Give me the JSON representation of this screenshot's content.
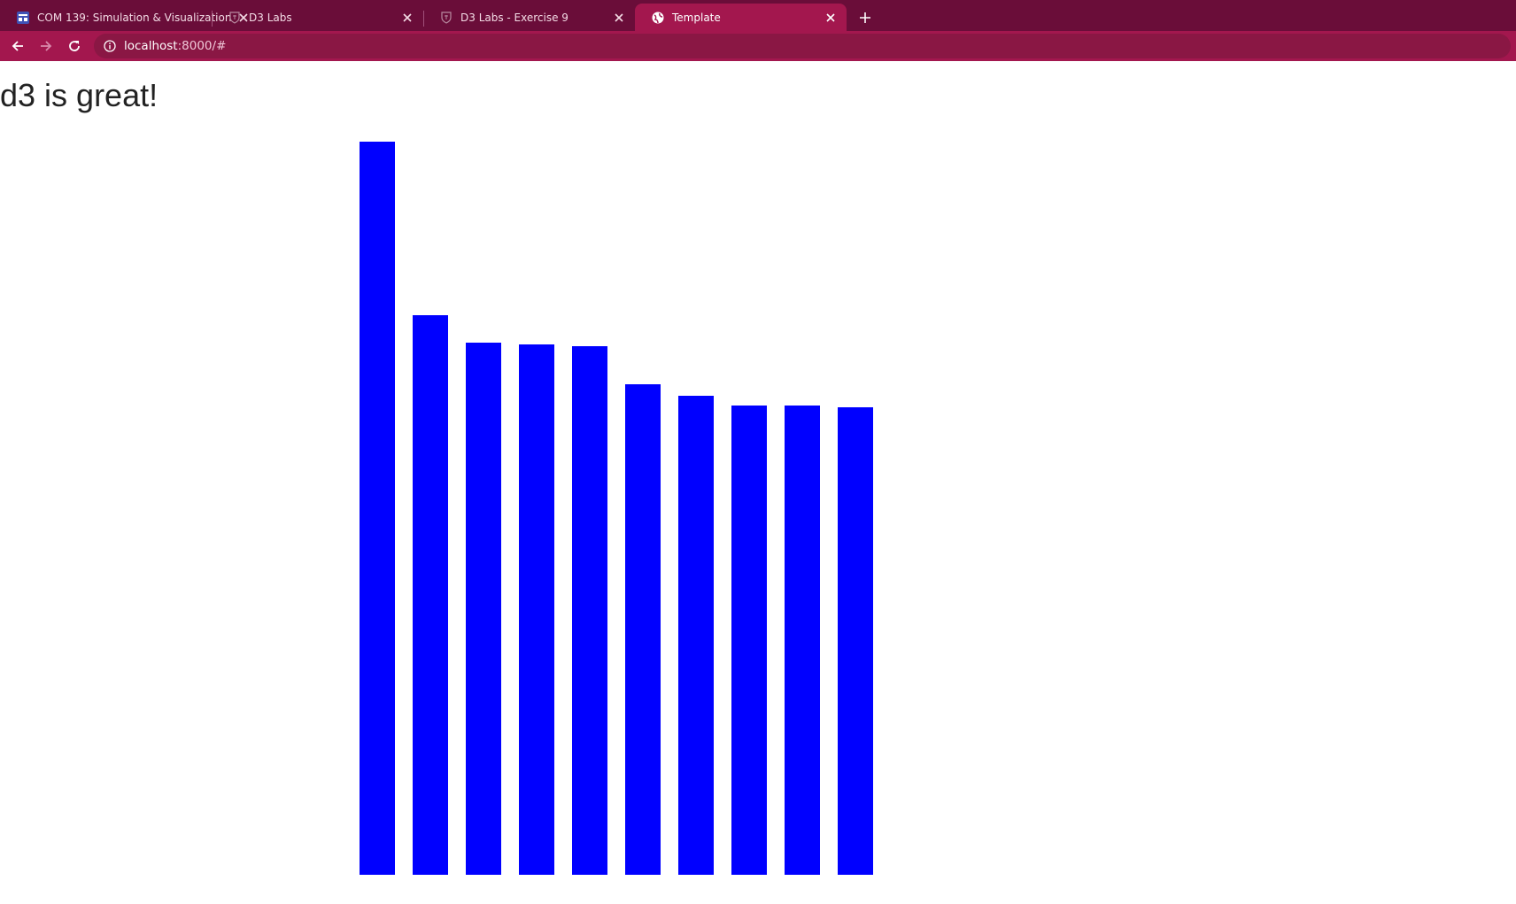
{
  "browser": {
    "tabs": [
      {
        "title": "COM 139: Simulation & Visualization",
        "favicon": "calendar-icon",
        "active": false
      },
      {
        "title": "D3 Labs",
        "favicon": "shield-crest-icon",
        "active": false
      },
      {
        "title": "D3 Labs - Exercise 9",
        "favicon": "shield-crest-icon",
        "active": false
      },
      {
        "title": "Template",
        "favicon": "globe-icon",
        "active": true
      }
    ],
    "url": {
      "host": "localhost",
      "rest": ":8000/#"
    },
    "colors": {
      "tabstrip": "#6a0d39",
      "toolbar": "#a3174e"
    }
  },
  "page": {
    "heading": "d3 is great!"
  },
  "chart_data": {
    "type": "bar",
    "values": [
      828,
      632,
      601,
      599,
      597,
      554,
      541,
      530,
      530,
      528
    ],
    "color": "#0000ff",
    "axes_visible": false,
    "grid": false
  }
}
